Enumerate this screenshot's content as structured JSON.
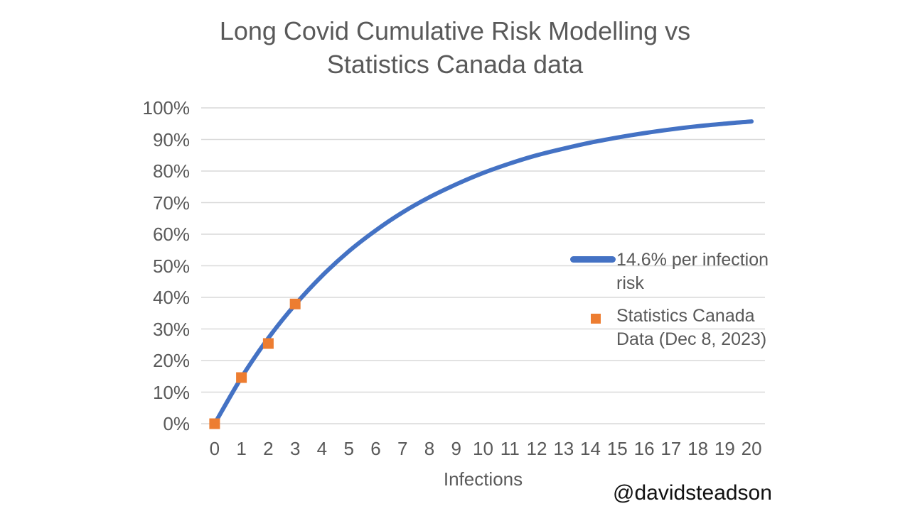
{
  "watermark": "@davidsteadson",
  "title_lines": [
    "Long Covid Cumulative Risk Modelling vs",
    "Statistics Canada data"
  ],
  "chart_data": {
    "type": "line",
    "title": "Long Covid Cumulative Risk Modelling vs Statistics Canada data",
    "xlabel": "Infections",
    "ylabel": "",
    "x": [
      0,
      1,
      2,
      3,
      4,
      5,
      6,
      7,
      8,
      9,
      10,
      11,
      12,
      13,
      14,
      15,
      16,
      17,
      18,
      19,
      20
    ],
    "ylim": [
      0,
      100
    ],
    "yticks": [
      "0%",
      "10%",
      "20%",
      "30%",
      "40%",
      "50%",
      "60%",
      "70%",
      "80%",
      "90%",
      "100%"
    ],
    "grid": true,
    "legend_position": "inside-right",
    "series": [
      {
        "name": "14.6% per infection risk",
        "legend_lines": [
          "14.6% per infection",
          "risk"
        ],
        "type": "line",
        "smooth": true,
        "color": "#4472C4",
        "values": [
          0,
          14.6,
          27.1,
          37.7,
          46.8,
          54.6,
          61.2,
          66.9,
          71.7,
          75.8,
          79.4,
          82.4,
          85.0,
          87.1,
          89.0,
          90.6,
          92.0,
          93.2,
          94.2,
          95.0,
          95.7
        ]
      },
      {
        "name": "Statistics Canada Data (Dec 8, 2023)",
        "legend_lines": [
          "Statistics Canada",
          "Data (Dec 8, 2023)"
        ],
        "type": "scatter",
        "marker": "square",
        "color": "#ED7D31",
        "x": [
          0,
          1,
          2,
          3
        ],
        "values": [
          0,
          14.6,
          25.4,
          37.9
        ]
      }
    ],
    "colors": {
      "grid": "#D9D9D9",
      "text": "#595959",
      "model_line": "#4472C4",
      "data_marker": "#ED7D31"
    }
  }
}
